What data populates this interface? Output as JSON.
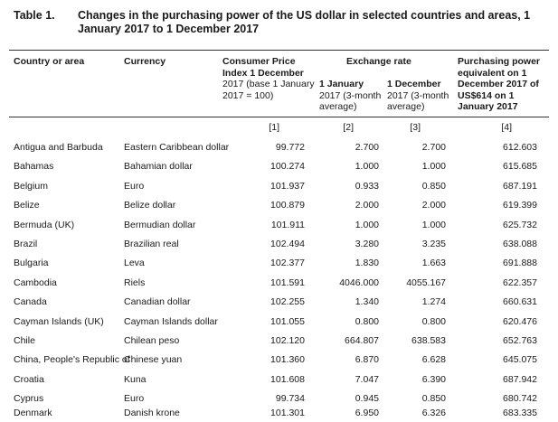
{
  "table": {
    "label": "Table 1.",
    "title": "Changes in the purchasing power of the US dollar in selected countries and areas, 1 January 2017 to 1 December 2017",
    "headers": {
      "country": "Country or area",
      "currency": "Currency",
      "cpi_title": "Consumer Price Index 1 December",
      "cpi_sub": "2017 (base 1 January 2017 = 100)",
      "exchange_group": "Exchange rate",
      "ex1_title": "1 January",
      "ex1_sub": "2017 (3-month average)",
      "ex2_title": "1 December",
      "ex2_sub": "2017 (3-month average)",
      "ppe": "Purchasing power equivalent on 1 December 2017 of US$614 on 1 January 2017"
    },
    "column_numbers": [
      "[1]",
      "[2]",
      "[3]",
      "[4]"
    ],
    "rows": [
      {
        "country": "Antigua and Barbuda",
        "currency": "Eastern Caribbean dollar",
        "cpi": "99.772",
        "ex1": "2.700",
        "ex2": "2.700",
        "ppe": "612.603"
      },
      {
        "country": "Bahamas",
        "currency": "Bahamian dollar",
        "cpi": "100.274",
        "ex1": "1.000",
        "ex2": "1.000",
        "ppe": "615.685"
      },
      {
        "country": "Belgium",
        "currency": "Euro",
        "cpi": "101.937",
        "ex1": "0.933",
        "ex2": "0.850",
        "ppe": "687.191"
      },
      {
        "country": "Belize",
        "currency": "Belize dollar",
        "cpi": "100.879",
        "ex1": "2.000",
        "ex2": "2.000",
        "ppe": "619.399"
      },
      {
        "country": "Bermuda (UK)",
        "currency": "Bermudian dollar",
        "cpi": "101.911",
        "ex1": "1.000",
        "ex2": "1.000",
        "ppe": "625.732"
      },
      {
        "country": "Brazil",
        "currency": "Brazilian real",
        "cpi": "102.494",
        "ex1": "3.280",
        "ex2": "3.235",
        "ppe": "638.088"
      },
      {
        "country": "Bulgaria",
        "currency": "Leva",
        "cpi": "102.377",
        "ex1": "1.830",
        "ex2": "1.663",
        "ppe": "691.888"
      },
      {
        "country": "Cambodia",
        "currency": "Riels",
        "cpi": "101.591",
        "ex1": "4046.000",
        "ex2": "4055.167",
        "ppe": "622.357"
      },
      {
        "country": "Canada",
        "currency": "Canadian dollar",
        "cpi": "102.255",
        "ex1": "1.340",
        "ex2": "1.274",
        "ppe": "660.631"
      },
      {
        "country": "Cayman Islands (UK)",
        "currency": "Cayman Islands dollar",
        "cpi": "101.055",
        "ex1": "0.800",
        "ex2": "0.800",
        "ppe": "620.476"
      },
      {
        "country": "Chile",
        "currency": "Chilean peso",
        "cpi": "102.120",
        "ex1": "664.807",
        "ex2": "638.583",
        "ppe": "652.763"
      },
      {
        "country": "China, People's Republic of",
        "currency": "Chinese yuan",
        "cpi": "101.360",
        "ex1": "6.870",
        "ex2": "6.628",
        "ppe": "645.075"
      },
      {
        "country": "Croatia",
        "currency": "Kuna",
        "cpi": "101.608",
        "ex1": "7.047",
        "ex2": "6.390",
        "ppe": "687.942"
      },
      {
        "country": "Cyprus",
        "currency": "Euro",
        "cpi": "99.734",
        "ex1": "0.945",
        "ex2": "0.850",
        "ppe": "680.742"
      },
      {
        "country": "Denmark",
        "currency": "Danish krone",
        "cpi": "101.301",
        "ex1": "6.950",
        "ex2": "6.326",
        "ppe": "683.335"
      }
    ]
  }
}
